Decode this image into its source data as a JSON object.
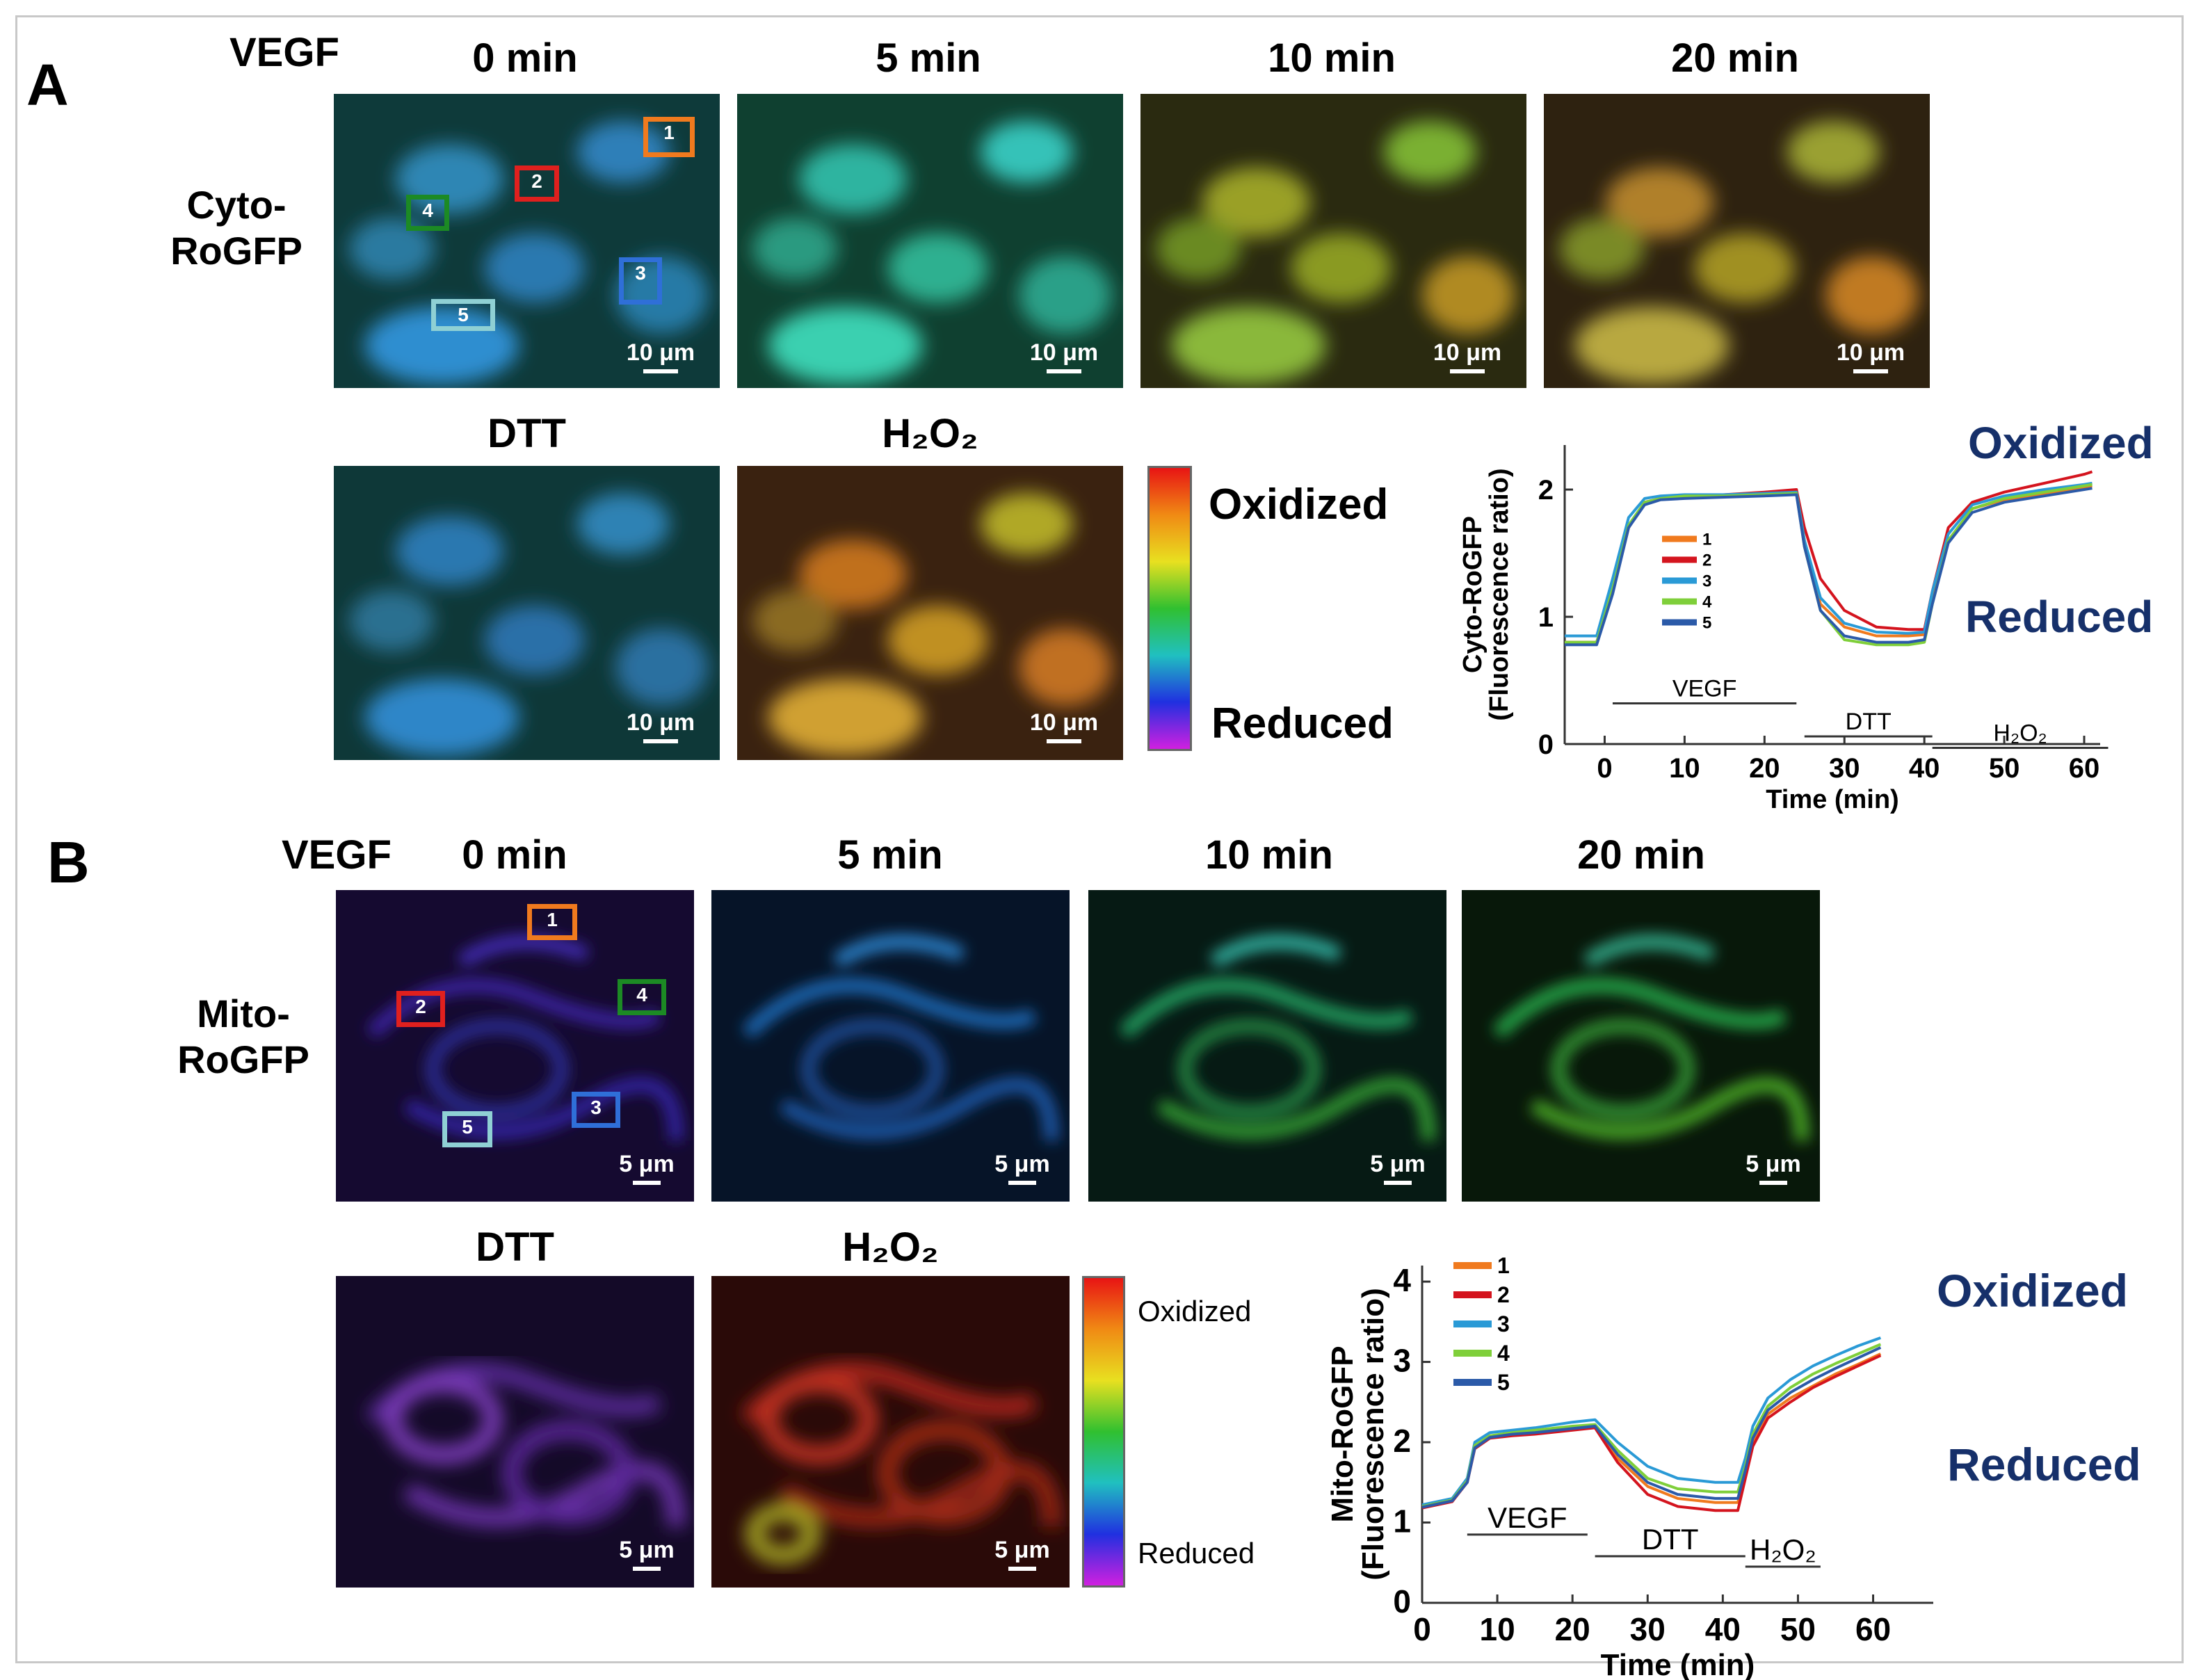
{
  "panel_a": {
    "letter": "A",
    "treatment": "VEGF",
    "row_label": [
      "Cyto-",
      "RoGFP"
    ],
    "timepoints": [
      "0 min",
      "5 min",
      "10 min",
      "20 min"
    ],
    "controls": [
      "DTT",
      "H₂O₂"
    ],
    "scale_bar": "10 μm",
    "colorbar": {
      "top": "Oxidized",
      "bottom": "Reduced"
    },
    "roi_labels": [
      "1",
      "2",
      "3",
      "4",
      "5"
    ],
    "oxidized_label": "Oxidized",
    "reduced_label": "Reduced"
  },
  "panel_b": {
    "letter": "B",
    "treatment": "VEGF",
    "row_label": [
      "Mito-",
      "RoGFP"
    ],
    "timepoints": [
      "0 min",
      "5 min",
      "10 min",
      "20 min"
    ],
    "controls": [
      "DTT",
      "H₂O₂"
    ],
    "scale_bar": "5 μm",
    "colorbar": {
      "top": "Oxidized",
      "bottom": "Reduced"
    },
    "roi_labels": [
      "1",
      "2",
      "3",
      "4",
      "5"
    ],
    "oxidized_label": "Oxidized",
    "reduced_label": "Reduced"
  },
  "colors": {
    "roi": [
      "#f07a1e",
      "#e0201e",
      "#2f6fd8",
      "#1c8a24",
      "#8fd0d4"
    ],
    "series": [
      "#f07a1e",
      "#d4141e",
      "#2a9ad6",
      "#7fcf3a",
      "#2b5aa8"
    ]
  },
  "chart_data": [
    {
      "type": "line",
      "ylabel": [
        "Cyto-RoGFP",
        "(Fluorescence ratio)"
      ],
      "xlabel": "Time (min)",
      "xlim": [
        -5,
        62
      ],
      "ylim": [
        0,
        2.35
      ],
      "xticks": [
        0,
        10,
        20,
        30,
        40,
        50,
        60
      ],
      "yticks": [
        0,
        1,
        2
      ],
      "legend": [
        "1",
        "2",
        "3",
        "4",
        "5"
      ],
      "treatments": [
        {
          "label": "VEGF",
          "start": 1,
          "end": 24
        },
        {
          "label": "DTT",
          "start": 25,
          "end": 41
        },
        {
          "label": "H₂O₂",
          "start": 41,
          "end": 63
        }
      ],
      "series": [
        {
          "name": "1",
          "x": [
            -5,
            -1,
            1,
            3,
            5,
            7,
            10,
            15,
            20,
            24,
            25,
            27,
            30,
            34,
            38,
            40,
            41,
            43,
            46,
            50,
            55,
            60,
            61
          ],
          "y": [
            0.8,
            0.8,
            1.2,
            1.7,
            1.9,
            1.93,
            1.94,
            1.95,
            1.96,
            1.98,
            1.6,
            1.1,
            0.92,
            0.85,
            0.85,
            0.86,
            1.15,
            1.6,
            1.85,
            1.92,
            1.97,
            2.02,
            2.03
          ]
        },
        {
          "name": "2",
          "x": [
            -5,
            -1,
            1,
            3,
            5,
            7,
            10,
            15,
            20,
            24,
            25,
            27,
            30,
            34,
            38,
            40,
            41,
            43,
            46,
            50,
            55,
            60,
            61
          ],
          "y": [
            0.8,
            0.8,
            1.2,
            1.7,
            1.9,
            1.93,
            1.94,
            1.96,
            1.98,
            2.0,
            1.7,
            1.3,
            1.05,
            0.92,
            0.9,
            0.9,
            1.2,
            1.7,
            1.9,
            1.98,
            2.05,
            2.12,
            2.14
          ]
        },
        {
          "name": "3",
          "x": [
            -5,
            -1,
            1,
            3,
            5,
            7,
            10,
            15,
            20,
            24,
            25,
            27,
            30,
            34,
            38,
            40,
            41,
            43,
            46,
            50,
            55,
            60,
            61
          ],
          "y": [
            0.85,
            0.85,
            1.3,
            1.78,
            1.93,
            1.95,
            1.96,
            1.96,
            1.97,
            1.98,
            1.6,
            1.15,
            0.95,
            0.88,
            0.87,
            0.88,
            1.2,
            1.65,
            1.88,
            1.95,
            2.0,
            2.04,
            2.05
          ]
        },
        {
          "name": "4",
          "x": [
            -5,
            -1,
            1,
            3,
            5,
            7,
            10,
            15,
            20,
            24,
            25,
            27,
            30,
            34,
            38,
            40,
            41,
            43,
            46,
            50,
            55,
            60,
            61
          ],
          "y": [
            0.8,
            0.8,
            1.22,
            1.72,
            1.9,
            1.93,
            1.95,
            1.95,
            1.96,
            1.97,
            1.55,
            1.05,
            0.82,
            0.78,
            0.78,
            0.8,
            1.1,
            1.6,
            1.85,
            1.93,
            1.98,
            2.03,
            2.04
          ]
        },
        {
          "name": "5",
          "x": [
            -5,
            -1,
            1,
            3,
            5,
            7,
            10,
            15,
            20,
            24,
            25,
            27,
            30,
            34,
            38,
            40,
            41,
            43,
            46,
            50,
            55,
            60,
            61
          ],
          "y": [
            0.78,
            0.78,
            1.18,
            1.7,
            1.88,
            1.92,
            1.93,
            1.94,
            1.95,
            1.96,
            1.55,
            1.05,
            0.85,
            0.8,
            0.8,
            0.82,
            1.1,
            1.58,
            1.82,
            1.9,
            1.95,
            2.0,
            2.01
          ]
        }
      ]
    },
    {
      "type": "line",
      "ylabel": [
        "Mito-RoGFP",
        "(Fluorescence ratio)"
      ],
      "xlabel": "Time (min)",
      "xlim": [
        0,
        68
      ],
      "ylim": [
        0,
        4.2
      ],
      "xticks": [
        0,
        10,
        20,
        30,
        40,
        50,
        60
      ],
      "yticks": [
        0,
        1,
        2,
        3,
        4
      ],
      "legend": [
        "1",
        "2",
        "3",
        "4",
        "5"
      ],
      "treatments": [
        {
          "label": "VEGF",
          "start": 6,
          "end": 22
        },
        {
          "label": "DTT",
          "start": 23,
          "end": 43
        },
        {
          "label": "H₂O₂",
          "start": 43,
          "end": 53
        }
      ],
      "series": [
        {
          "name": "1",
          "x": [
            0,
            4,
            6,
            7,
            9,
            12,
            15,
            20,
            23,
            26,
            30,
            34,
            39,
            42,
            43,
            44,
            46,
            49,
            52,
            55,
            58,
            61
          ],
          "y": [
            1.2,
            1.28,
            1.5,
            1.95,
            2.08,
            2.1,
            2.12,
            2.18,
            2.2,
            1.8,
            1.45,
            1.3,
            1.25,
            1.25,
            1.6,
            2.0,
            2.35,
            2.55,
            2.7,
            2.85,
            2.97,
            3.1
          ]
        },
        {
          "name": "2",
          "x": [
            0,
            4,
            6,
            7,
            9,
            12,
            15,
            20,
            23,
            26,
            30,
            34,
            39,
            42,
            43,
            44,
            46,
            49,
            52,
            55,
            58,
            61
          ],
          "y": [
            1.18,
            1.26,
            1.5,
            1.92,
            2.05,
            2.08,
            2.1,
            2.15,
            2.18,
            1.75,
            1.35,
            1.2,
            1.15,
            1.15,
            1.55,
            1.95,
            2.3,
            2.5,
            2.68,
            2.82,
            2.95,
            3.08
          ]
        },
        {
          "name": "3",
          "x": [
            0,
            4,
            6,
            7,
            9,
            12,
            15,
            20,
            23,
            26,
            30,
            34,
            39,
            42,
            43,
            44,
            46,
            49,
            52,
            55,
            58,
            61
          ],
          "y": [
            1.22,
            1.3,
            1.55,
            2.0,
            2.12,
            2.15,
            2.18,
            2.25,
            2.28,
            2.0,
            1.7,
            1.55,
            1.5,
            1.5,
            1.8,
            2.2,
            2.55,
            2.78,
            2.95,
            3.08,
            3.2,
            3.3
          ]
        },
        {
          "name": "4",
          "x": [
            0,
            4,
            6,
            7,
            9,
            12,
            15,
            20,
            23,
            26,
            30,
            34,
            39,
            42,
            43,
            44,
            46,
            49,
            52,
            55,
            58,
            61
          ],
          "y": [
            1.2,
            1.28,
            1.52,
            1.96,
            2.08,
            2.12,
            2.15,
            2.2,
            2.22,
            1.9,
            1.55,
            1.42,
            1.38,
            1.38,
            1.7,
            2.1,
            2.45,
            2.68,
            2.85,
            2.98,
            3.1,
            3.22
          ]
        },
        {
          "name": "5",
          "x": [
            0,
            4,
            6,
            7,
            9,
            12,
            15,
            20,
            23,
            26,
            30,
            34,
            39,
            42,
            43,
            44,
            46,
            49,
            52,
            55,
            58,
            61
          ],
          "y": [
            1.19,
            1.27,
            1.5,
            1.93,
            2.06,
            2.1,
            2.12,
            2.17,
            2.2,
            1.85,
            1.5,
            1.35,
            1.3,
            1.3,
            1.65,
            2.05,
            2.4,
            2.62,
            2.78,
            2.92,
            3.05,
            3.18
          ]
        }
      ]
    }
  ]
}
